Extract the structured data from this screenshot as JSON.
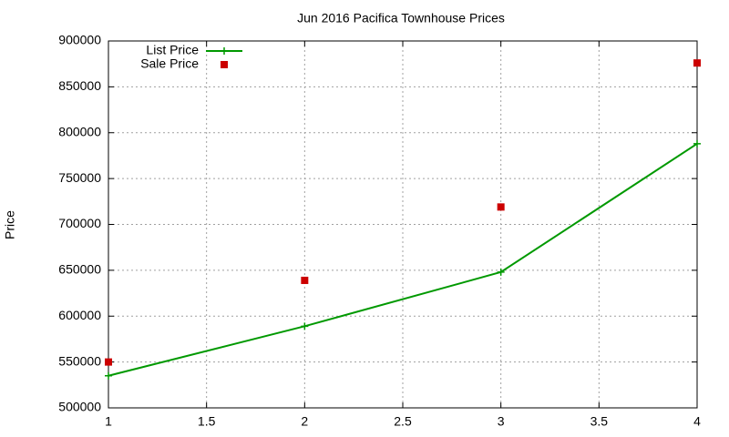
{
  "chart_data": {
    "type": "line",
    "title": "Jun 2016 Pacifica Townhouse Prices",
    "ylabel": "Price",
    "x": [
      1,
      2,
      3,
      4
    ],
    "series": [
      {
        "name": "List Price",
        "color": "#009900",
        "line": true,
        "marker": "plus",
        "values": [
          535000,
          589000,
          648000,
          788000
        ]
      },
      {
        "name": "Sale Price",
        "color": "#cc0000",
        "line": false,
        "marker": "square",
        "values": [
          550000,
          639000,
          719000,
          876000
        ]
      }
    ],
    "xlim": [
      1,
      4
    ],
    "xticks": [
      1,
      1.5,
      2,
      2.5,
      3,
      3.5,
      4
    ],
    "ylim": [
      500000,
      900000
    ],
    "yticks": [
      500000,
      550000,
      600000,
      650000,
      700000,
      750000,
      800000,
      850000,
      900000
    ],
    "grid": true,
    "legend": "top-left"
  }
}
